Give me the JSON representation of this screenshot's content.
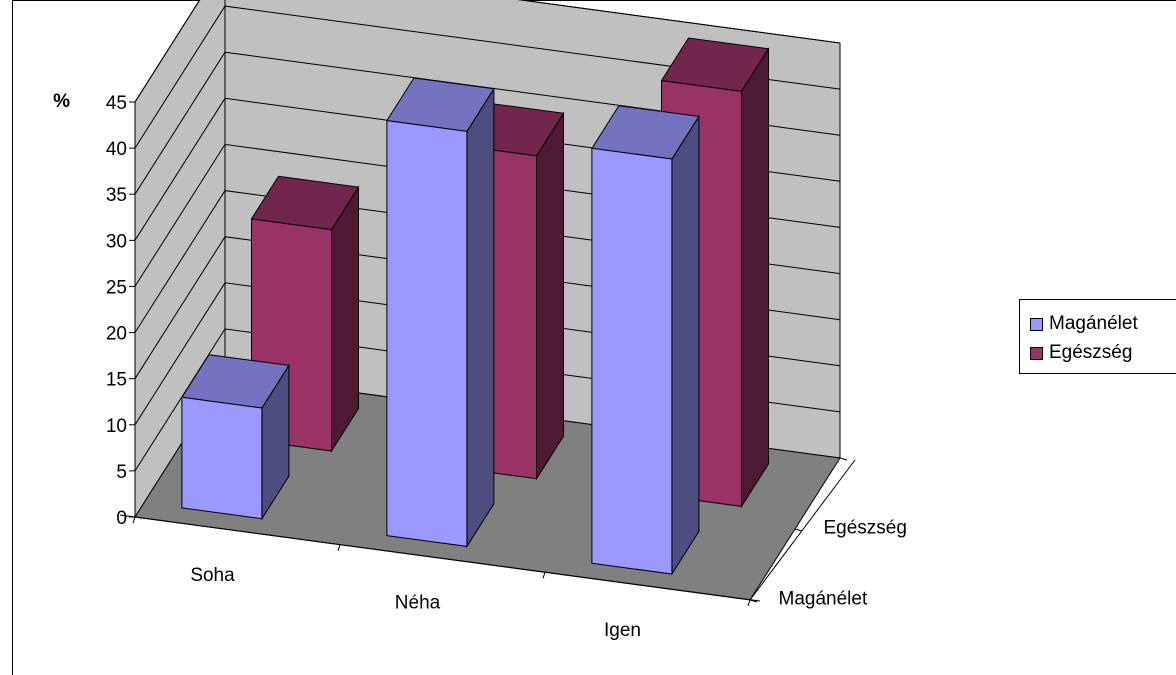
{
  "chart_data": {
    "type": "bar",
    "variant": "3d-grouped-depth",
    "ylabel": "%",
    "ylim": [
      0,
      45
    ],
    "y_ticks": [
      "0",
      "5",
      "10",
      "15",
      "20",
      "25",
      "30",
      "35",
      "40",
      "45"
    ],
    "categories": [
      "Soha",
      "Néha",
      "Igen"
    ],
    "depth_categories": [
      "Magánélet",
      "Egészség"
    ],
    "series": [
      {
        "name": "Magánélet",
        "values": [
          12,
          45,
          45
        ],
        "color": "#9999FF"
      },
      {
        "name": "Egészség",
        "values": [
          24,
          35,
          45
        ],
        "color": "#993366"
      }
    ],
    "grid": true,
    "legend_position": "right",
    "colors": {
      "walls": "#C0C0C0",
      "floor": "#808080"
    }
  }
}
